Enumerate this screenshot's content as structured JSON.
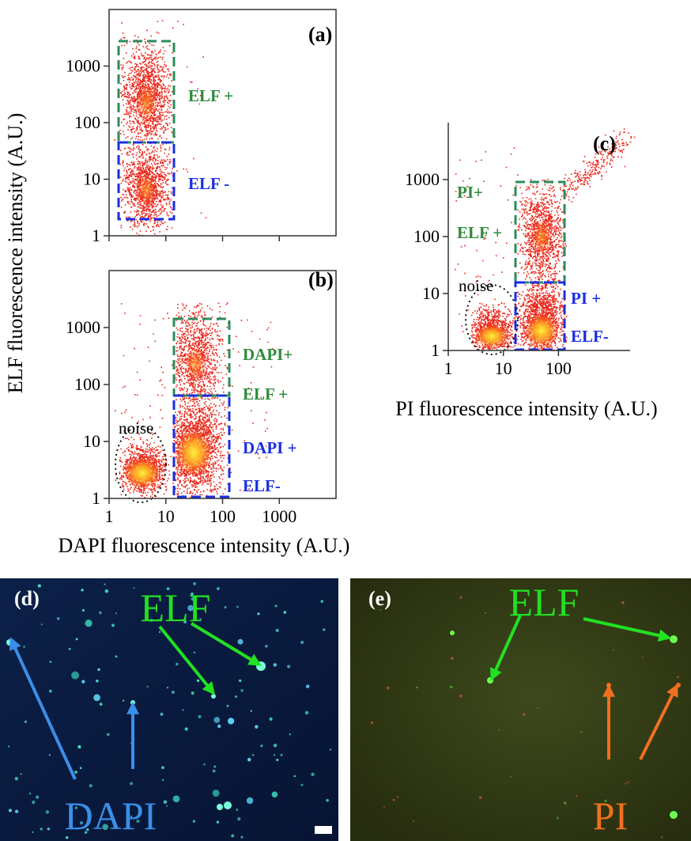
{
  "figure": {
    "y_label": "ELF fluorescence intensity (A.U.)",
    "panels": [
      {
        "label": "(a)",
        "scale": "log",
        "xlim": [
          1,
          10000
        ],
        "ylim": [
          1,
          10000
        ],
        "yticks": [
          1,
          10,
          100,
          1000
        ],
        "gates": [
          {
            "text": "ELF +",
            "color": "#2e8b3a"
          },
          {
            "text": "ELF -",
            "color": "#1a2ee0"
          }
        ]
      },
      {
        "label": "(b)",
        "scale": "log",
        "xlim": [
          1,
          10000
        ],
        "ylim": [
          1,
          10000
        ],
        "yticks": [
          1,
          10,
          100,
          1000
        ],
        "xticks": [
          1,
          10,
          100,
          1000
        ],
        "x_label": "DAPI fluorescence intensity (A.U.)",
        "noise": "noise",
        "gates": [
          {
            "text": "DAPI+",
            "color": "#2e8b3a"
          },
          {
            "text": "ELF +",
            "color": "#2e8b3a"
          },
          {
            "text": "DAPI +",
            "color": "#1a2ee0"
          },
          {
            "text": "ELF-",
            "color": "#1a2ee0"
          }
        ]
      },
      {
        "label": "(c)",
        "scale": "log",
        "xlim": [
          1,
          2000
        ],
        "ylim": [
          1,
          10000
        ],
        "yticks": [
          1,
          10,
          100,
          1000
        ],
        "xticks": [
          1,
          10,
          100
        ],
        "x_label": "PI fluorescence intensity (A.U.)",
        "noise": "noise",
        "gates": [
          {
            "text": "PI+",
            "color": "#2e8b3a"
          },
          {
            "text": "ELF +",
            "color": "#2e8b3a"
          },
          {
            "text": "PI +",
            "color": "#1a2ee0"
          },
          {
            "text": "ELF-",
            "color": "#1a2ee0"
          }
        ]
      }
    ]
  },
  "images": [
    {
      "label": "(d)",
      "annotations": [
        {
          "text": "ELF",
          "color": "#22e022"
        },
        {
          "text": "DAPI",
          "color": "#3a8fe8"
        }
      ]
    },
    {
      "label": "(e)",
      "annotations": [
        {
          "text": "ELF",
          "color": "#22e022"
        },
        {
          "text": "PI",
          "color": "#f07020"
        }
      ]
    }
  ]
}
